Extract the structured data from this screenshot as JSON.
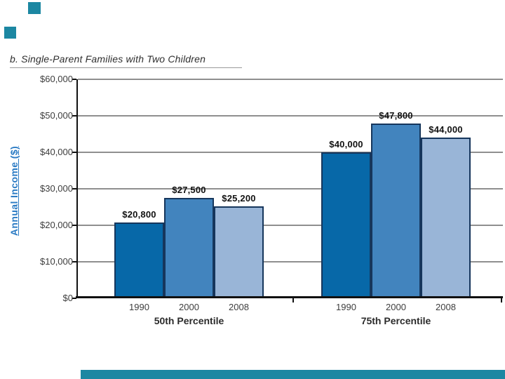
{
  "slide": {
    "accent_color": "#1c87a2"
  },
  "chart_data": {
    "type": "bar",
    "title": "b. Single-Parent Families with Two Children",
    "ylabel": "Annual Income ($)",
    "xlabel": "",
    "ylim": [
      0,
      60000
    ],
    "ytick_interval": 10000,
    "ytick_labels": [
      "$0",
      "$10,000",
      "$20,000",
      "$30,000",
      "$40,000",
      "$50,000",
      "$60,000"
    ],
    "grid": "horizontal",
    "legend": "none",
    "categories": [
      "1990",
      "2000",
      "2008"
    ],
    "groups": [
      {
        "label": "50th Percentile",
        "values": [
          20800,
          27500,
          25200
        ],
        "value_labels": [
          "$20,800",
          "$27,500",
          "$25,200"
        ]
      },
      {
        "label": "75th Percentile",
        "values": [
          40000,
          47800,
          44000
        ],
        "value_labels": [
          "$40,000",
          "$47,800",
          "$44,000"
        ]
      }
    ],
    "bar_colors": [
      "#0768a8",
      "#4284be",
      "#99b5d7"
    ],
    "bar_border_color": "#16365c",
    "gridline_color": "#8f8f8f",
    "axis_color": "#111111",
    "title_color": "#2e2e2e",
    "ylabel_color": "#2b7bc4"
  }
}
